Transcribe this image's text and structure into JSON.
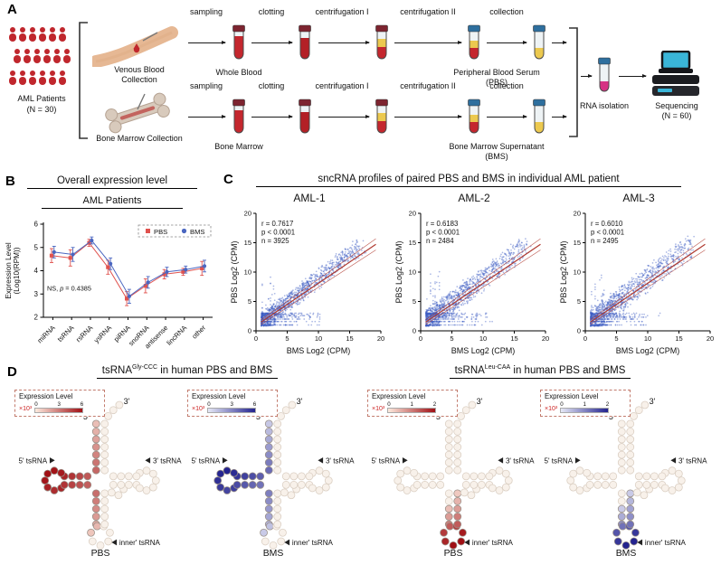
{
  "panel_a": {
    "label": "A",
    "patients": {
      "line1": "AML Patients",
      "line2": "(N = 30)"
    },
    "sources": [
      {
        "name": "Venous Blood Collection"
      },
      {
        "name": "Bone Marrow Collection"
      }
    ],
    "steps": [
      "sampling",
      "clotting",
      "centrifugation I",
      "centrifugation II",
      "collection"
    ],
    "rows": [
      {
        "source_label": "Whole Blood",
        "product": "Peripheral Blood Serum",
        "product_abbr": "(PBS)"
      },
      {
        "source_label": "Bone Marrow",
        "product": "Bone Marrow Supernatant",
        "product_abbr": "(BMS)"
      }
    ],
    "rna_isolation_label": "RNA isolation",
    "sequencing": {
      "line1": "Sequencing",
      "line2": "(N = 60)"
    }
  },
  "panel_b": {
    "label": "B",
    "ylabel_line1": "Expression Level",
    "ylabel_line2": "(Log10(RPM))"
  },
  "panel_c": {
    "label": "C",
    "title": "sncRNA profiles of paired PBS and BMS in individual AML patient"
  },
  "panel_d": {
    "label": "D",
    "labels": {
      "five_end": "5'",
      "three_end": "3'",
      "five_arm": "5' tsRNA",
      "three_arm": "3' tsRNA",
      "inner_arm": "inner' tsRNA"
    },
    "sections": [
      {
        "title": {
          "base": "tsRNA",
          "sup": "Gly-CCC",
          "rest": " in human PBS and BMS"
        },
        "plots": [
          {
            "sample": "PBS",
            "scheme": "red",
            "legend_title": "Expression Level",
            "scale_factor": "×10³",
            "scale_ticks": [
              "0",
              "3",
              "6"
            ],
            "scale_max": 6,
            "highlight": {
              "region": "5prime-half",
              "start": 0,
              "values": [
                1.2,
                1.6,
                2.0,
                2.4,
                2.8,
                3.2,
                3.6,
                4.0,
                4.5,
                5.0,
                5.4,
                5.7,
                5.9,
                6.0,
                5.8,
                5.5,
                5.2,
                5.4,
                5.0,
                4.6,
                4.2,
                3.8,
                3.4,
                3.0,
                2.6,
                2.2,
                1.8,
                1.4,
                1.0
              ]
            }
          },
          {
            "sample": "BMS",
            "scheme": "blue",
            "legend_title": "Expression Level",
            "scale_factor": "×10³",
            "scale_ticks": [
              "0",
              "3",
              "6"
            ],
            "scale_max": 6,
            "highlight": {
              "region": "5prime-half",
              "start": 0,
              "values": [
                1.0,
                1.4,
                1.9,
                2.3,
                2.8,
                3.3,
                3.8,
                4.2,
                4.7,
                5.1,
                5.5,
                5.8,
                6.0,
                5.9,
                5.6,
                5.3,
                5.0,
                5.2,
                4.8,
                4.4,
                4.0,
                3.6,
                3.2,
                2.8,
                2.4,
                2.0,
                1.6,
                1.2,
                0.9
              ]
            }
          }
        ]
      },
      {
        "title": {
          "base": "tsRNA",
          "sup": "Leu-CAA",
          "rest": " in human PBS and BMS"
        },
        "plots": [
          {
            "sample": "PBS",
            "scheme": "red",
            "legend_title": "Expression Level",
            "scale_factor": "×10³",
            "scale_ticks": [
              "0",
              "1",
              "2"
            ],
            "scale_max": 2,
            "highlight": {
              "region": "inner-anticodon",
              "start": 24,
              "values": [
                0.4,
                0.7,
                1.0,
                1.3,
                1.6,
                1.8,
                2.0,
                2.0,
                1.9,
                1.6,
                1.3,
                1.0,
                0.7,
                0.5,
                0.3
              ]
            }
          },
          {
            "sample": "BMS",
            "scheme": "blue",
            "legend_title": "Expression Level",
            "scale_factor": "×10³",
            "scale_ticks": [
              "0",
              "1",
              "2"
            ],
            "scale_max": 2,
            "highlight": {
              "region": "inner-anticodon",
              "start": 24,
              "values": [
                0.3,
                0.6,
                0.9,
                1.2,
                1.5,
                1.8,
                2.0,
                2.0,
                1.8,
                1.5,
                1.2,
                0.9,
                0.7,
                0.5,
                0.3
              ]
            }
          }
        ]
      }
    ]
  },
  "chart_data": [
    {
      "id": "overall-expression-line",
      "type": "line",
      "title": "Overall expression level",
      "subtitle": "AML Patients",
      "ylabel": "Expression Level (Log10(RPM))",
      "categories": [
        "miRNA",
        "tsRNA",
        "rsRNA",
        "ysRNA",
        "piRNA",
        "snoRNA",
        "antisense",
        "lincRNA",
        "other"
      ],
      "series": [
        {
          "name": "PBS",
          "color": "#e0524e",
          "marker": "square",
          "values": [
            4.65,
            4.55,
            5.2,
            4.15,
            2.8,
            3.35,
            3.85,
            3.95,
            4.1
          ],
          "errors": [
            0.3,
            0.35,
            0.15,
            0.3,
            0.3,
            0.3,
            0.2,
            0.15,
            0.3
          ]
        },
        {
          "name": "BMS",
          "color": "#4a66c0",
          "marker": "circle",
          "values": [
            4.8,
            4.7,
            5.3,
            4.3,
            2.9,
            3.5,
            3.95,
            4.05,
            4.2
          ],
          "errors": [
            0.25,
            0.3,
            0.15,
            0.25,
            0.3,
            0.25,
            0.2,
            0.15,
            0.25
          ]
        }
      ],
      "ylim": [
        2,
        6
      ],
      "yticks": [
        2,
        3,
        4,
        5,
        6
      ],
      "annotation": {
        "prefix": "NS, ",
        "italic": "p",
        "suffix": " = 0.4385"
      },
      "legend": {
        "items": [
          "PBS",
          "BMS"
        ],
        "position": "top-right",
        "border": "dashed"
      },
      "grid": false
    },
    {
      "id": "scatter-aml-1",
      "type": "scatter",
      "title": "AML-1",
      "stats": {
        "r": "0.7617",
        "p": "< 0.0001",
        "n": "3925"
      },
      "xlabel": "BMS Log2 (CPM)",
      "ylabel": "PBS Log2 (CPM)",
      "xlim": [
        0,
        20
      ],
      "ylim": [
        0,
        20
      ],
      "xticks": [
        0,
        5,
        10,
        15,
        20
      ],
      "yticks": [
        0,
        5,
        10,
        15,
        20
      ],
      "point_color": "#3d5ec4",
      "fit_line_color": "#b03a30"
    },
    {
      "id": "scatter-aml-2",
      "type": "scatter",
      "title": "AML-2",
      "stats": {
        "r": "0.6183",
        "p": "< 0.0001",
        "n": "2484"
      },
      "xlabel": "BMS Log2 (CPM)",
      "ylabel": "PBS Log2 (CPM)",
      "xlim": [
        0,
        20
      ],
      "ylim": [
        0,
        20
      ],
      "xticks": [
        0,
        5,
        10,
        15,
        20
      ],
      "yticks": [
        0,
        5,
        10,
        15,
        20
      ],
      "point_color": "#3d5ec4",
      "fit_line_color": "#b03a30"
    },
    {
      "id": "scatter-aml-3",
      "type": "scatter",
      "title": "AML-3",
      "stats": {
        "r": "0.6010",
        "p": "< 0.0001",
        "n": "2495"
      },
      "xlabel": "BMS Log2 (CPM)",
      "ylabel": "PBS Log2 (CPM)",
      "xlim": [
        0,
        20
      ],
      "ylim": [
        0,
        20
      ],
      "xticks": [
        0,
        5,
        10,
        15,
        20
      ],
      "yticks": [
        0,
        5,
        10,
        15,
        20
      ],
      "point_color": "#3d5ec4",
      "fit_line_color": "#b03a30"
    }
  ]
}
